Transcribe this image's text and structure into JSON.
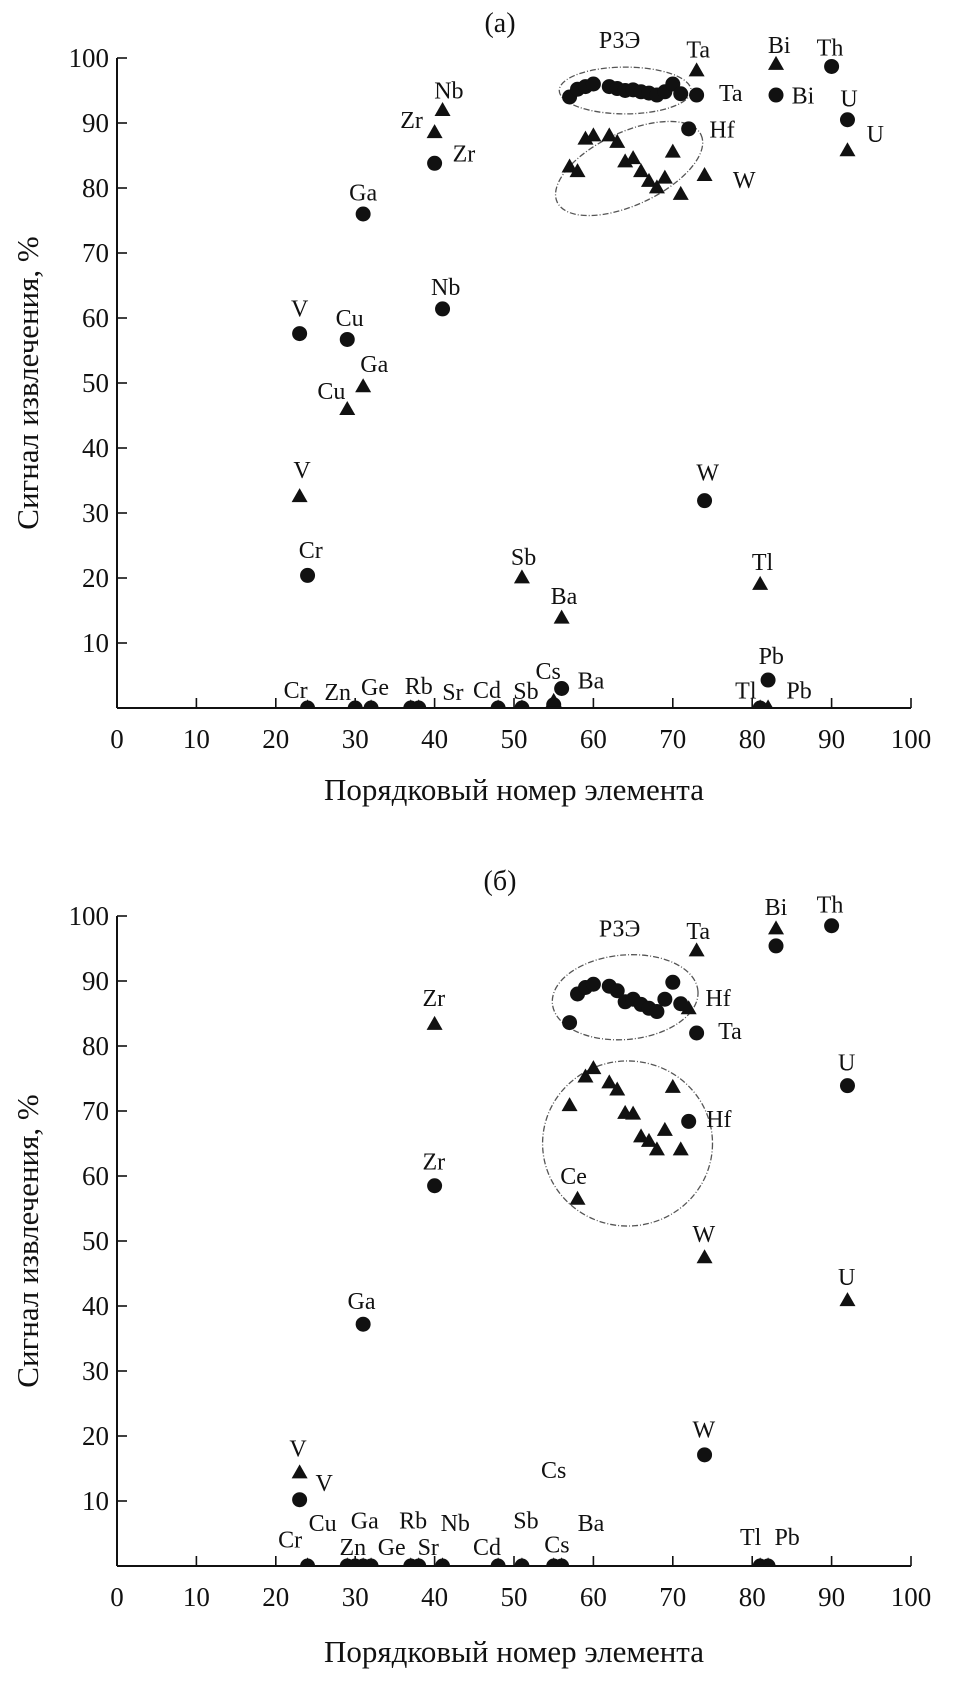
{
  "chart_data": [
    {
      "type": "scatter",
      "title": "(a)",
      "xlabel": "Порядковый номер элемента",
      "ylabel": "Сигнал извлечения, %",
      "xlim": [
        0,
        100
      ],
      "ylim": [
        0,
        100
      ],
      "xticks": [
        "0",
        "10",
        "20",
        "30",
        "40",
        "50",
        "60",
        "70",
        "80",
        "90",
        "100"
      ],
      "yticks": [
        "10",
        "20",
        "30",
        "40",
        "50",
        "60",
        "70",
        "80",
        "90",
        "100"
      ],
      "grid": false,
      "colors": {
        "marker": "#111111",
        "ellipse": "#555555"
      },
      "series": [
        {
          "marker": "circle",
          "points": [
            [
              23,
              57.6
            ],
            [
              24,
              20.4
            ],
            [
              29,
              56.7
            ],
            [
              31,
              76
            ],
            [
              40,
              83.8
            ],
            [
              41,
              61.4
            ],
            [
              56,
              3
            ],
            [
              55,
              0.5
            ],
            [
              57,
              94
            ],
            [
              58,
              95.2
            ],
            [
              59,
              95.6
            ],
            [
              60,
              96
            ],
            [
              62,
              95.6
            ],
            [
              63,
              95.3
            ],
            [
              64,
              95
            ],
            [
              65,
              95.1
            ],
            [
              66,
              94.8
            ],
            [
              67,
              94.6
            ],
            [
              68,
              94.3
            ],
            [
              69,
              94.8
            ],
            [
              70,
              96
            ],
            [
              71,
              94.5
            ],
            [
              72,
              89.1
            ],
            [
              73,
              94.3
            ],
            [
              74,
              31.9
            ],
            [
              82,
              4.3
            ],
            [
              83,
              94.3
            ],
            [
              90,
              98.7
            ],
            [
              92,
              90.5
            ],
            [
              24,
              0
            ],
            [
              30,
              0
            ],
            [
              32,
              0
            ],
            [
              37,
              0
            ],
            [
              38,
              0
            ],
            [
              48,
              0
            ],
            [
              51,
              0
            ],
            [
              81,
              0
            ]
          ]
        },
        {
          "marker": "triangle",
          "points": [
            [
              23,
              32.5
            ],
            [
              29,
              45.9
            ],
            [
              31,
              49.4
            ],
            [
              40,
              88.5
            ],
            [
              41,
              91.9
            ],
            [
              51,
              20
            ],
            [
              56,
              13.8
            ],
            [
              55,
              1
            ],
            [
              57,
              83.2
            ],
            [
              58,
              82.5
            ],
            [
              59,
              87.5
            ],
            [
              60,
              88
            ],
            [
              62,
              88
            ],
            [
              63,
              87
            ],
            [
              64,
              84
            ],
            [
              65,
              84.5
            ],
            [
              66,
              82.5
            ],
            [
              67,
              81
            ],
            [
              68,
              80
            ],
            [
              69,
              81.5
            ],
            [
              70,
              85.5
            ],
            [
              71,
              79
            ],
            [
              73,
              98
            ],
            [
              74,
              81.9
            ],
            [
              81,
              19
            ],
            [
              83,
              99
            ],
            [
              92,
              85.7
            ],
            [
              24,
              0
            ],
            [
              30,
              0
            ],
            [
              32,
              0
            ],
            [
              37,
              0
            ],
            [
              38,
              0
            ],
            [
              48,
              0
            ],
            [
              51,
              0
            ],
            [
              81,
              0
            ],
            [
              82,
              0
            ]
          ]
        }
      ],
      "annotations": [
        {
          "text": "РЗЭ",
          "x": 63.3,
          "y": 102.8
        },
        {
          "text": "Ta",
          "x": 73.2,
          "y": 101.3
        },
        {
          "text": "Ta",
          "x": 77.3,
          "y": 94.6
        },
        {
          "text": "Bi",
          "x": 83.4,
          "y": 102
        },
        {
          "text": "Bi",
          "x": 86.4,
          "y": 94.2
        },
        {
          "text": "Th",
          "x": 89.8,
          "y": 101.6
        },
        {
          "text": "U",
          "x": 92.2,
          "y": 93.8
        },
        {
          "text": "U",
          "x": 95.5,
          "y": 88.3
        },
        {
          "text": "Hf",
          "x": 76.2,
          "y": 89
        },
        {
          "text": "W",
          "x": 79,
          "y": 81.2
        },
        {
          "text": "Nb",
          "x": 41.8,
          "y": 95
        },
        {
          "text": "Zr",
          "x": 37.1,
          "y": 90.5
        },
        {
          "text": "Zr",
          "x": 43.7,
          "y": 85.3
        },
        {
          "text": "Ga",
          "x": 31,
          "y": 79.3
        },
        {
          "text": "Nb",
          "x": 41.4,
          "y": 64.8
        },
        {
          "text": "V",
          "x": 23,
          "y": 61.5
        },
        {
          "text": "Cu",
          "x": 29.3,
          "y": 60
        },
        {
          "text": "Ga",
          "x": 32.4,
          "y": 52.9
        },
        {
          "text": "Cu",
          "x": 27,
          "y": 48.8
        },
        {
          "text": "V",
          "x": 23.3,
          "y": 36.6
        },
        {
          "text": "W",
          "x": 74.4,
          "y": 36.2
        },
        {
          "text": "Cr",
          "x": 24.4,
          "y": 24.3
        },
        {
          "text": "Sb",
          "x": 51.2,
          "y": 23.2
        },
        {
          "text": "Ba",
          "x": 56.3,
          "y": 17.2
        },
        {
          "text": "Tl",
          "x": 81.3,
          "y": 22.5
        },
        {
          "text": "Pb",
          "x": 82.4,
          "y": 8
        },
        {
          "text": "Cr",
          "x": 22.5,
          "y": 2.8
        },
        {
          "text": "Zn",
          "x": 27.8,
          "y": 2.5
        },
        {
          "text": "Ge",
          "x": 32.5,
          "y": 3.2
        },
        {
          "text": "Rb",
          "x": 38,
          "y": 3.4
        },
        {
          "text": "Sr",
          "x": 42.3,
          "y": 2.5
        },
        {
          "text": "Cd",
          "x": 46.6,
          "y": 2.8
        },
        {
          "text": "Sb",
          "x": 51.5,
          "y": 2.6
        },
        {
          "text": "Cs",
          "x": 54.3,
          "y": 5.7
        },
        {
          "text": "Ba",
          "x": 59.7,
          "y": 4.2
        },
        {
          "text": "Tl",
          "x": 79.2,
          "y": 2.7
        },
        {
          "text": "Pb",
          "x": 85.9,
          "y": 2.7
        }
      ]
    },
    {
      "type": "scatter",
      "title": "(б)",
      "xlabel": "Порядковый номер элемента",
      "ylabel": "Сигнал извлечения, %",
      "xlim": [
        0,
        100
      ],
      "ylim": [
        0,
        100
      ],
      "xticks": [
        "0",
        "10",
        "20",
        "30",
        "40",
        "50",
        "60",
        "70",
        "80",
        "90",
        "100"
      ],
      "yticks": [
        "10",
        "20",
        "30",
        "40",
        "50",
        "60",
        "70",
        "80",
        "90",
        "100"
      ],
      "grid": false,
      "colors": {
        "marker": "#111111",
        "ellipse": "#555555"
      },
      "series": [
        {
          "marker": "circle",
          "points": [
            [
              23,
              10.2
            ],
            [
              31,
              37.2
            ],
            [
              40,
              58.5
            ],
            [
              57,
              83.6
            ],
            [
              58,
              88
            ],
            [
              59,
              89
            ],
            [
              60,
              89.5
            ],
            [
              62,
              89.2
            ],
            [
              63,
              88.5
            ],
            [
              64,
              86.8
            ],
            [
              65,
              87.2
            ],
            [
              66,
              86.4
            ],
            [
              67,
              85.8
            ],
            [
              68,
              85.3
            ],
            [
              69,
              87.2
            ],
            [
              70,
              89.8
            ],
            [
              71,
              86.5
            ],
            [
              72,
              68.4
            ],
            [
              73,
              82
            ],
            [
              74,
              17.1
            ],
            [
              83,
              95.4
            ],
            [
              90,
              98.5
            ],
            [
              92,
              73.9
            ],
            [
              24,
              0
            ],
            [
              29,
              0
            ],
            [
              30,
              0
            ],
            [
              31,
              0
            ],
            [
              32,
              0
            ],
            [
              37,
              0
            ],
            [
              38,
              0
            ],
            [
              41,
              0
            ],
            [
              48,
              0
            ],
            [
              51,
              0
            ],
            [
              55,
              0
            ],
            [
              56,
              0
            ],
            [
              81,
              0
            ],
            [
              82,
              0
            ]
          ]
        },
        {
          "marker": "triangle",
          "points": [
            [
              23,
              14.3
            ],
            [
              40,
              83.3
            ],
            [
              57,
              70.8
            ],
            [
              58,
              56.4
            ],
            [
              59,
              75.2
            ],
            [
              60,
              76.5
            ],
            [
              62,
              74.3
            ],
            [
              63,
              73.2
            ],
            [
              64,
              69.6
            ],
            [
              65,
              69.5
            ],
            [
              66,
              66
            ],
            [
              67,
              65.3
            ],
            [
              68,
              64
            ],
            [
              69,
              67
            ],
            [
              70,
              73.6
            ],
            [
              71,
              64
            ],
            [
              72,
              85.7
            ],
            [
              73,
              94.6
            ],
            [
              74,
              47.4
            ],
            [
              83,
              98
            ],
            [
              92,
              40.8
            ],
            [
              24,
              0
            ],
            [
              29,
              0
            ],
            [
              30,
              0
            ],
            [
              31,
              0
            ],
            [
              32,
              0
            ],
            [
              37,
              0
            ],
            [
              38,
              0
            ],
            [
              41,
              0
            ],
            [
              48,
              0
            ],
            [
              51,
              0
            ],
            [
              55,
              0
            ],
            [
              56,
              0
            ],
            [
              81,
              0
            ],
            [
              82,
              0
            ]
          ]
        }
      ],
      "annotations": [
        {
          "text": "РЗЭ",
          "x": 63.3,
          "y": 98.1
        },
        {
          "text": "Ta",
          "x": 73.2,
          "y": 97.7
        },
        {
          "text": "Bi",
          "x": 83,
          "y": 101.4
        },
        {
          "text": "Th",
          "x": 89.8,
          "y": 101.8
        },
        {
          "text": "Hf",
          "x": 75.7,
          "y": 87.4
        },
        {
          "text": "Ta",
          "x": 77.2,
          "y": 82.3
        },
        {
          "text": "U",
          "x": 91.9,
          "y": 77.5
        },
        {
          "text": "Hf",
          "x": 75.8,
          "y": 68.8
        },
        {
          "text": "Zr",
          "x": 39.9,
          "y": 87.4
        },
        {
          "text": "Zr",
          "x": 39.9,
          "y": 62.2
        },
        {
          "text": "Ce",
          "x": 57.5,
          "y": 60
        },
        {
          "text": "W",
          "x": 73.9,
          "y": 51.1
        },
        {
          "text": "U",
          "x": 91.9,
          "y": 44.5
        },
        {
          "text": "Ga",
          "x": 30.8,
          "y": 40.8
        },
        {
          "text": "W",
          "x": 73.9,
          "y": 21
        },
        {
          "text": "Cs",
          "x": 55,
          "y": 14.8
        },
        {
          "text": "V",
          "x": 22.8,
          "y": 18.1
        },
        {
          "text": "V",
          "x": 26.1,
          "y": 12.8
        },
        {
          "text": "Cu",
          "x": 25.9,
          "y": 6.6
        },
        {
          "text": "Ga",
          "x": 31.2,
          "y": 7
        },
        {
          "text": "Rb",
          "x": 37.3,
          "y": 7
        },
        {
          "text": "Nb",
          "x": 42.6,
          "y": 6.6
        },
        {
          "text": "Sb",
          "x": 51.5,
          "y": 7
        },
        {
          "text": "Ba",
          "x": 59.7,
          "y": 6.6
        },
        {
          "text": "Cr",
          "x": 21.8,
          "y": 4.1
        },
        {
          "text": "Zn",
          "x": 29.7,
          "y": 2.9
        },
        {
          "text": "Ge",
          "x": 34.6,
          "y": 2.9
        },
        {
          "text": "Sr",
          "x": 39.2,
          "y": 2.9
        },
        {
          "text": "Cd",
          "x": 46.6,
          "y": 2.9
        },
        {
          "text": "Cs",
          "x": 55.4,
          "y": 3.3
        },
        {
          "text": "Tl",
          "x": 79.8,
          "y": 4.5
        },
        {
          "text": "Pb",
          "x": 84.4,
          "y": 4.5
        }
      ]
    }
  ]
}
